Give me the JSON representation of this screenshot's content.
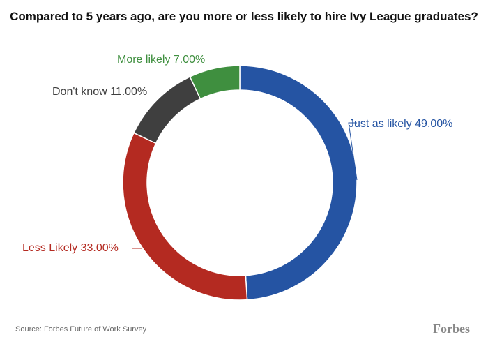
{
  "chart_data": {
    "type": "pie",
    "variant": "donut",
    "title": "Compared to 5 years ago, are you more or less likely to hire Ivy League graduates?",
    "slices": [
      {
        "label": "Just as likely",
        "value": 49.0,
        "display": "49.00%",
        "color": "#2554a3",
        "labelColor": "#2554a3"
      },
      {
        "label": "Less Likely",
        "value": 33.0,
        "display": "33.00%",
        "color": "#b42a21",
        "labelColor": "#b42a21"
      },
      {
        "label": "Don't know",
        "value": 11.0,
        "display": "11.00%",
        "color": "#3f3f3f",
        "labelColor": "#3f3f3f"
      },
      {
        "label": "More likely",
        "value": 7.0,
        "display": "7.00%",
        "color": "#3f8f3f",
        "labelColor": "#3f8f3f"
      }
    ]
  },
  "footer": {
    "source": "Source: Forbes Future of Work Survey",
    "brand": "Forbes"
  }
}
